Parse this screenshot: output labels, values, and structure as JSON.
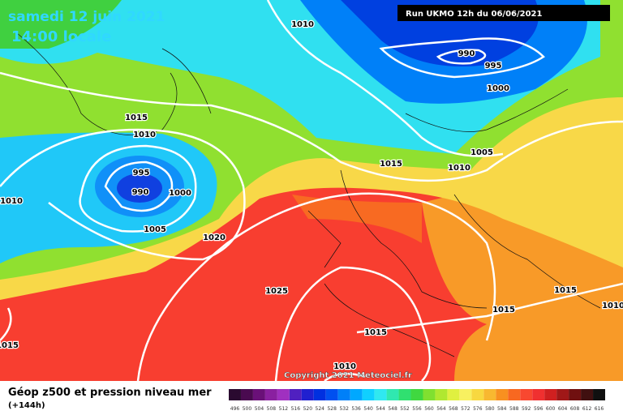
{
  "header": {
    "date": "samedi 12 juin 2021",
    "time": "14:00 locale",
    "run": "Run UKMO 12h du 06/06/2021"
  },
  "isobars": {
    "labels": [
      "1010",
      "990",
      "995",
      "1000",
      "1015",
      "1010",
      "995",
      "990",
      "1000",
      "1010",
      "1005",
      "1020",
      "1015",
      "1005",
      "1010",
      "1025",
      "1015",
      "1010",
      "1015",
      "1015",
      "1015",
      "1010"
    ]
  },
  "copyright": "Copyright 2021 Meteociel.fr",
  "footer": {
    "title": "Géop z500 et pression niveau mer",
    "subtitle": "(+144h)"
  },
  "legend": {
    "labels": [
      "496",
      "500",
      "504",
      "508",
      "512",
      "516",
      "520",
      "524",
      "528",
      "532",
      "536",
      "540",
      "544",
      "548",
      "552",
      "556",
      "560",
      "564",
      "568",
      "572",
      "576",
      "580",
      "584",
      "588",
      "592",
      "596",
      "600",
      "604",
      "608",
      "612",
      "616"
    ],
    "colors": [
      "#2a0a30",
      "#4a0a50",
      "#6a1078",
      "#8a20a0",
      "#a030c0",
      "#5020c0",
      "#2020d0",
      "#0030e0",
      "#0050f0",
      "#0080f8",
      "#00a8ff",
      "#10d0ff",
      "#30e8f0",
      "#30e8b0",
      "#30e070",
      "#40d840",
      "#80e030",
      "#b0e830",
      "#e0f040",
      "#f8f060",
      "#f8d840",
      "#f8b830",
      "#f89020",
      "#f86820",
      "#f84830",
      "#f03030",
      "#d02020",
      "#a01818",
      "#701010",
      "#401010",
      "#101010"
    ]
  }
}
